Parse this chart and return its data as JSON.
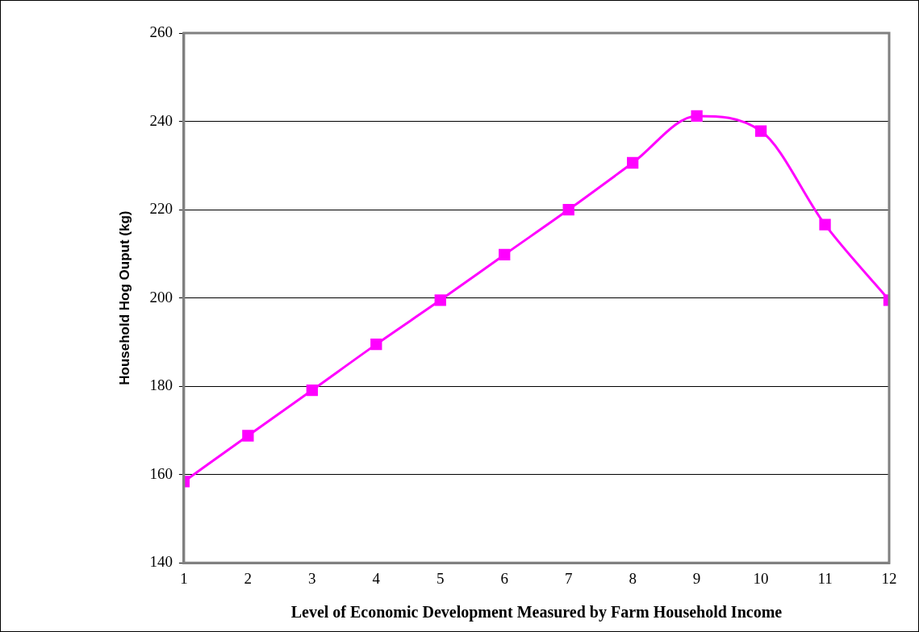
{
  "chart_data": {
    "type": "line",
    "xlabel": "Level of Economic Development Measured by Farm Household Income",
    "ylabel": "Household Hog Ouput (kg)",
    "x": [
      1,
      2,
      3,
      4,
      5,
      6,
      7,
      8,
      9,
      10,
      11,
      12
    ],
    "series": [
      {
        "color": "#ff00ff",
        "values": [
          158.4,
          168.8,
          179.1,
          189.5,
          199.5,
          209.8,
          220,
          230.6,
          241.2,
          237.8,
          216.6,
          199.5
        ]
      }
    ],
    "xlim": [
      1,
      12
    ],
    "xticks": [
      1,
      2,
      3,
      4,
      5,
      6,
      7,
      8,
      9,
      10,
      11,
      12
    ],
    "ylim": [
      140,
      260
    ],
    "yticks": [
      140,
      160,
      180,
      200,
      220,
      240,
      260
    ],
    "grid": "y",
    "legend": false,
    "marker": "square",
    "line_style": "solid"
  }
}
